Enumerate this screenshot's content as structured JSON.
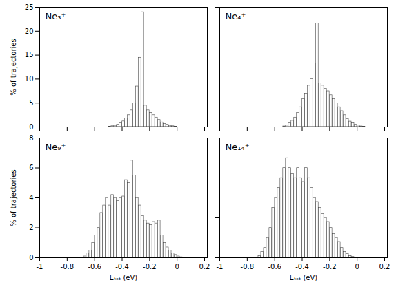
{
  "chart_data": [
    {
      "type": "histogram",
      "annotations": [
        "Ne₃⁺"
      ],
      "ylabel": "% of trajectories",
      "color": "white",
      "bins": [
        -0.82,
        -0.8,
        -0.78,
        -0.76,
        -0.74,
        -0.72,
        -0.7,
        -0.68,
        -0.66,
        -0.64,
        -0.62,
        -0.6,
        -0.58,
        -0.56,
        -0.54,
        -0.52,
        -0.5,
        -0.48,
        -0.46,
        -0.44,
        -0.42,
        -0.4,
        -0.38,
        -0.36,
        -0.34,
        -0.32,
        -0.3,
        -0.28,
        -0.26,
        -0.24,
        -0.22,
        -0.2,
        -0.18,
        -0.16,
        -0.14,
        -0.12,
        -0.1,
        -0.08,
        -0.06,
        -0.04,
        -0.02,
        0,
        0.02,
        0.04,
        0.06,
        0.08,
        0.1,
        0.12,
        0.14,
        0.16,
        0.18,
        0.2
      ],
      "values": [
        0,
        0,
        0,
        0,
        0,
        0,
        0,
        0,
        0,
        0,
        0,
        0,
        0,
        0,
        0,
        0,
        0.1,
        0.2,
        0.3,
        0.5,
        0.8,
        1.2,
        1.8,
        2.5,
        3.5,
        5.0,
        8.5,
        14.5,
        24.0,
        4.5,
        3.5,
        3.0,
        2.5,
        2.0,
        1.5,
        1.0,
        0.7,
        0.5,
        0.3,
        0.2,
        0.1,
        0.05,
        0,
        0,
        0,
        0,
        0,
        0,
        0,
        0,
        0
      ],
      "xlim": [
        -1,
        0.22
      ],
      "xticks": [
        -1,
        -0.8,
        -0.6,
        -0.4,
        -0.2,
        0,
        0.2
      ],
      "ylim": [
        0,
        25
      ],
      "yticks": [
        0,
        5,
        10,
        15,
        20,
        25
      ],
      "tick_labels": "y"
    },
    {
      "type": "histogram",
      "annotations": [
        "Ne₄⁺"
      ],
      "color": "white",
      "bins": [
        -0.82,
        -0.8,
        -0.78,
        -0.76,
        -0.74,
        -0.72,
        -0.7,
        -0.68,
        -0.66,
        -0.64,
        -0.62,
        -0.6,
        -0.58,
        -0.56,
        -0.54,
        -0.52,
        -0.5,
        -0.48,
        -0.46,
        -0.44,
        -0.42,
        -0.4,
        -0.38,
        -0.36,
        -0.34,
        -0.32,
        -0.3,
        -0.28,
        -0.26,
        -0.24,
        -0.22,
        -0.2,
        -0.18,
        -0.16,
        -0.14,
        -0.12,
        -0.1,
        -0.08,
        -0.06,
        -0.04,
        -0.02,
        0,
        0.02,
        0.04,
        0.06,
        0.08,
        0.1,
        0.12,
        0.14,
        0.16,
        0.18,
        0.2
      ],
      "values": [
        0,
        0,
        0,
        0,
        0,
        0,
        0,
        0,
        0,
        0,
        0,
        0,
        0,
        0,
        0.1,
        0.2,
        0.5,
        0.8,
        1.2,
        1.8,
        2.5,
        3.5,
        4.2,
        5.2,
        6.0,
        8.0,
        13.0,
        5.5,
        5.2,
        4.8,
        4.5,
        4.0,
        3.5,
        3.0,
        2.5,
        2.0,
        1.5,
        1.0,
        0.7,
        0.5,
        0.3,
        0.2,
        0.1,
        0.05,
        0,
        0,
        0,
        0,
        0,
        0,
        0
      ],
      "xlim": [
        -1,
        0.22
      ],
      "xticks": [
        -1,
        -0.8,
        -0.6,
        -0.4,
        -0.2,
        0,
        0.2
      ],
      "ylim": [
        0,
        15
      ],
      "yticks": [
        0,
        5,
        10,
        15
      ],
      "tick_labels": false
    },
    {
      "type": "histogram",
      "annotations": [
        "Ne₉⁺"
      ],
      "xlabel": "Eₜₒₜ (eV)",
      "ylabel": "% of trajectories",
      "color": "white",
      "bins": [
        -0.82,
        -0.8,
        -0.78,
        -0.76,
        -0.74,
        -0.72,
        -0.7,
        -0.68,
        -0.66,
        -0.64,
        -0.62,
        -0.6,
        -0.58,
        -0.56,
        -0.54,
        -0.52,
        -0.5,
        -0.48,
        -0.46,
        -0.44,
        -0.42,
        -0.4,
        -0.38,
        -0.36,
        -0.34,
        -0.32,
        -0.3,
        -0.28,
        -0.26,
        -0.24,
        -0.22,
        -0.2,
        -0.18,
        -0.16,
        -0.14,
        -0.12,
        -0.1,
        -0.08,
        -0.06,
        -0.04,
        -0.02,
        0,
        0.02,
        0.04,
        0.06,
        0.08,
        0.1,
        0.12,
        0.14,
        0.16,
        0.18
      ],
      "values": [
        0,
        0,
        0,
        0,
        0,
        0,
        0,
        0.1,
        0.3,
        0.5,
        1.0,
        1.5,
        2.0,
        3.0,
        3.5,
        4.0,
        3.5,
        4.2,
        4.0,
        3.8,
        4.0,
        4.1,
        5.2,
        5.0,
        6.5,
        5.5,
        4.0,
        3.5,
        2.8,
        2.5,
        2.3,
        2.2,
        2.4,
        2.3,
        2.5,
        1.5,
        1.0,
        0.7,
        0.5,
        0.3,
        0.2,
        0.1,
        0.05,
        0,
        0,
        0,
        0,
        0,
        0,
        0
      ],
      "xlim": [
        -1,
        0.22
      ],
      "xticks": [
        -1,
        -0.8,
        -0.6,
        -0.4,
        -0.2,
        0,
        0.2
      ],
      "ylim": [
        0,
        8
      ],
      "yticks": [
        0,
        2,
        4,
        6,
        8
      ]
    },
    {
      "type": "histogram",
      "annotations": [
        "Ne₁₄⁺"
      ],
      "xlabel": "Eₜₒₜ (eV)",
      "color": "white",
      "bins": [
        -0.82,
        -0.8,
        -0.78,
        -0.76,
        -0.74,
        -0.72,
        -0.7,
        -0.68,
        -0.66,
        -0.64,
        -0.62,
        -0.6,
        -0.58,
        -0.56,
        -0.54,
        -0.52,
        -0.5,
        -0.48,
        -0.46,
        -0.44,
        -0.42,
        -0.4,
        -0.38,
        -0.36,
        -0.34,
        -0.32,
        -0.3,
        -0.28,
        -0.26,
        -0.24,
        -0.22,
        -0.2,
        -0.18,
        -0.16,
        -0.14,
        -0.12,
        -0.1,
        -0.08,
        -0.06,
        -0.04,
        -0.02,
        0,
        0.02,
        0.04,
        0.06,
        0.08,
        0.1,
        0.12,
        0.14,
        0.16,
        0.18,
        0.2
      ],
      "values": [
        0,
        0,
        0,
        0,
        0,
        0.1,
        0.3,
        0.5,
        1.0,
        1.5,
        2.5,
        3.0,
        3.5,
        4.0,
        4.5,
        5.0,
        4.5,
        4.2,
        4.0,
        4.5,
        4.0,
        3.8,
        4.5,
        4.0,
        3.5,
        3.0,
        2.8,
        2.5,
        2.2,
        2.0,
        1.8,
        1.5,
        1.2,
        1.0,
        0.8,
        0.5,
        0.3,
        0.2,
        0.1,
        0.05,
        0,
        0,
        0,
        0,
        0,
        0,
        0,
        0,
        0,
        0,
        0
      ],
      "xlim": [
        -1,
        0.22
      ],
      "xticks": [
        -1,
        -0.8,
        -0.6,
        -0.4,
        -0.2,
        0,
        0.2
      ],
      "ylim": [
        0,
        6
      ],
      "yticks": [
        0,
        2,
        4,
        6
      ],
      "tick_labels": "x"
    }
  ]
}
